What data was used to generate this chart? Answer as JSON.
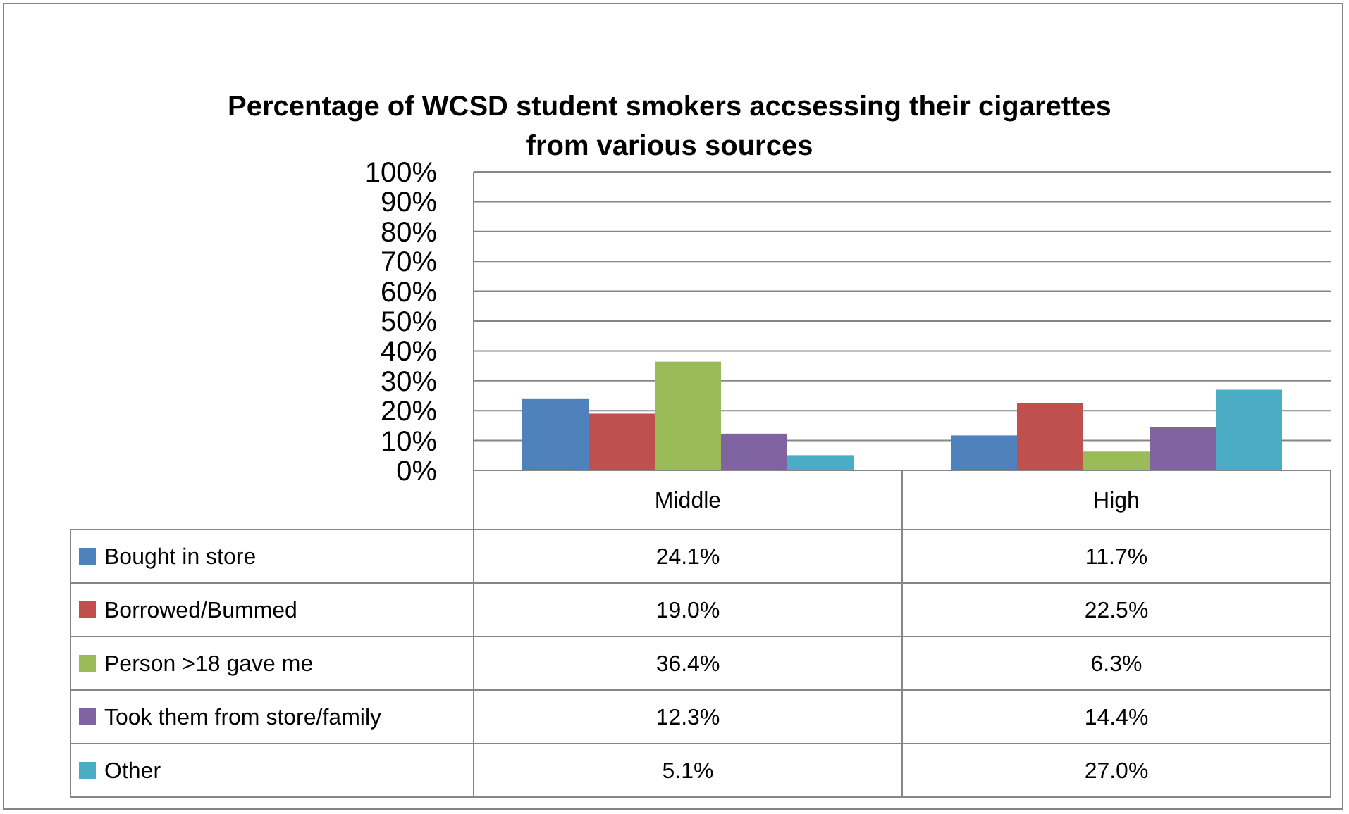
{
  "chart_data": {
    "type": "bar",
    "title": "Percentage of WCSD student smokers accsessing their cigarettes\nfrom various sources",
    "categories": [
      "Middle",
      "High"
    ],
    "series": [
      {
        "name": "Bought in store",
        "color": "#4f81bd",
        "values": [
          24.1,
          11.7
        ],
        "value_labels": [
          "24.1%",
          "11.7%"
        ]
      },
      {
        "name": "Borrowed/Bummed",
        "color": "#c0504d",
        "values": [
          19.0,
          22.5
        ],
        "value_labels": [
          "19.0%",
          "22.5%"
        ]
      },
      {
        "name": "Person >18 gave me",
        "color": "#9bbb59",
        "values": [
          36.4,
          6.3
        ],
        "value_labels": [
          "36.4%",
          "6.3%"
        ]
      },
      {
        "name": "Took them from store/family",
        "color": "#8064a2",
        "values": [
          12.3,
          14.4
        ],
        "value_labels": [
          "12.3%",
          "14.4%"
        ]
      },
      {
        "name": "Other",
        "color": "#4bacc6",
        "values": [
          5.1,
          27.0
        ],
        "value_labels": [
          "5.1%",
          "27.0%"
        ]
      }
    ],
    "ylim": [
      0,
      100
    ],
    "yticks": [
      {
        "value": 0,
        "label": "0%"
      },
      {
        "value": 10,
        "label": "10%"
      },
      {
        "value": 20,
        "label": "20%"
      },
      {
        "value": 30,
        "label": "30%"
      },
      {
        "value": 40,
        "label": "40%"
      },
      {
        "value": 50,
        "label": "50%"
      },
      {
        "value": 60,
        "label": "60%"
      },
      {
        "value": 70,
        "label": "70%"
      },
      {
        "value": 80,
        "label": "80%"
      },
      {
        "value": 90,
        "label": "90%"
      },
      {
        "value": 100,
        "label": "100%"
      }
    ],
    "grid": "y",
    "legend": "bottom"
  }
}
